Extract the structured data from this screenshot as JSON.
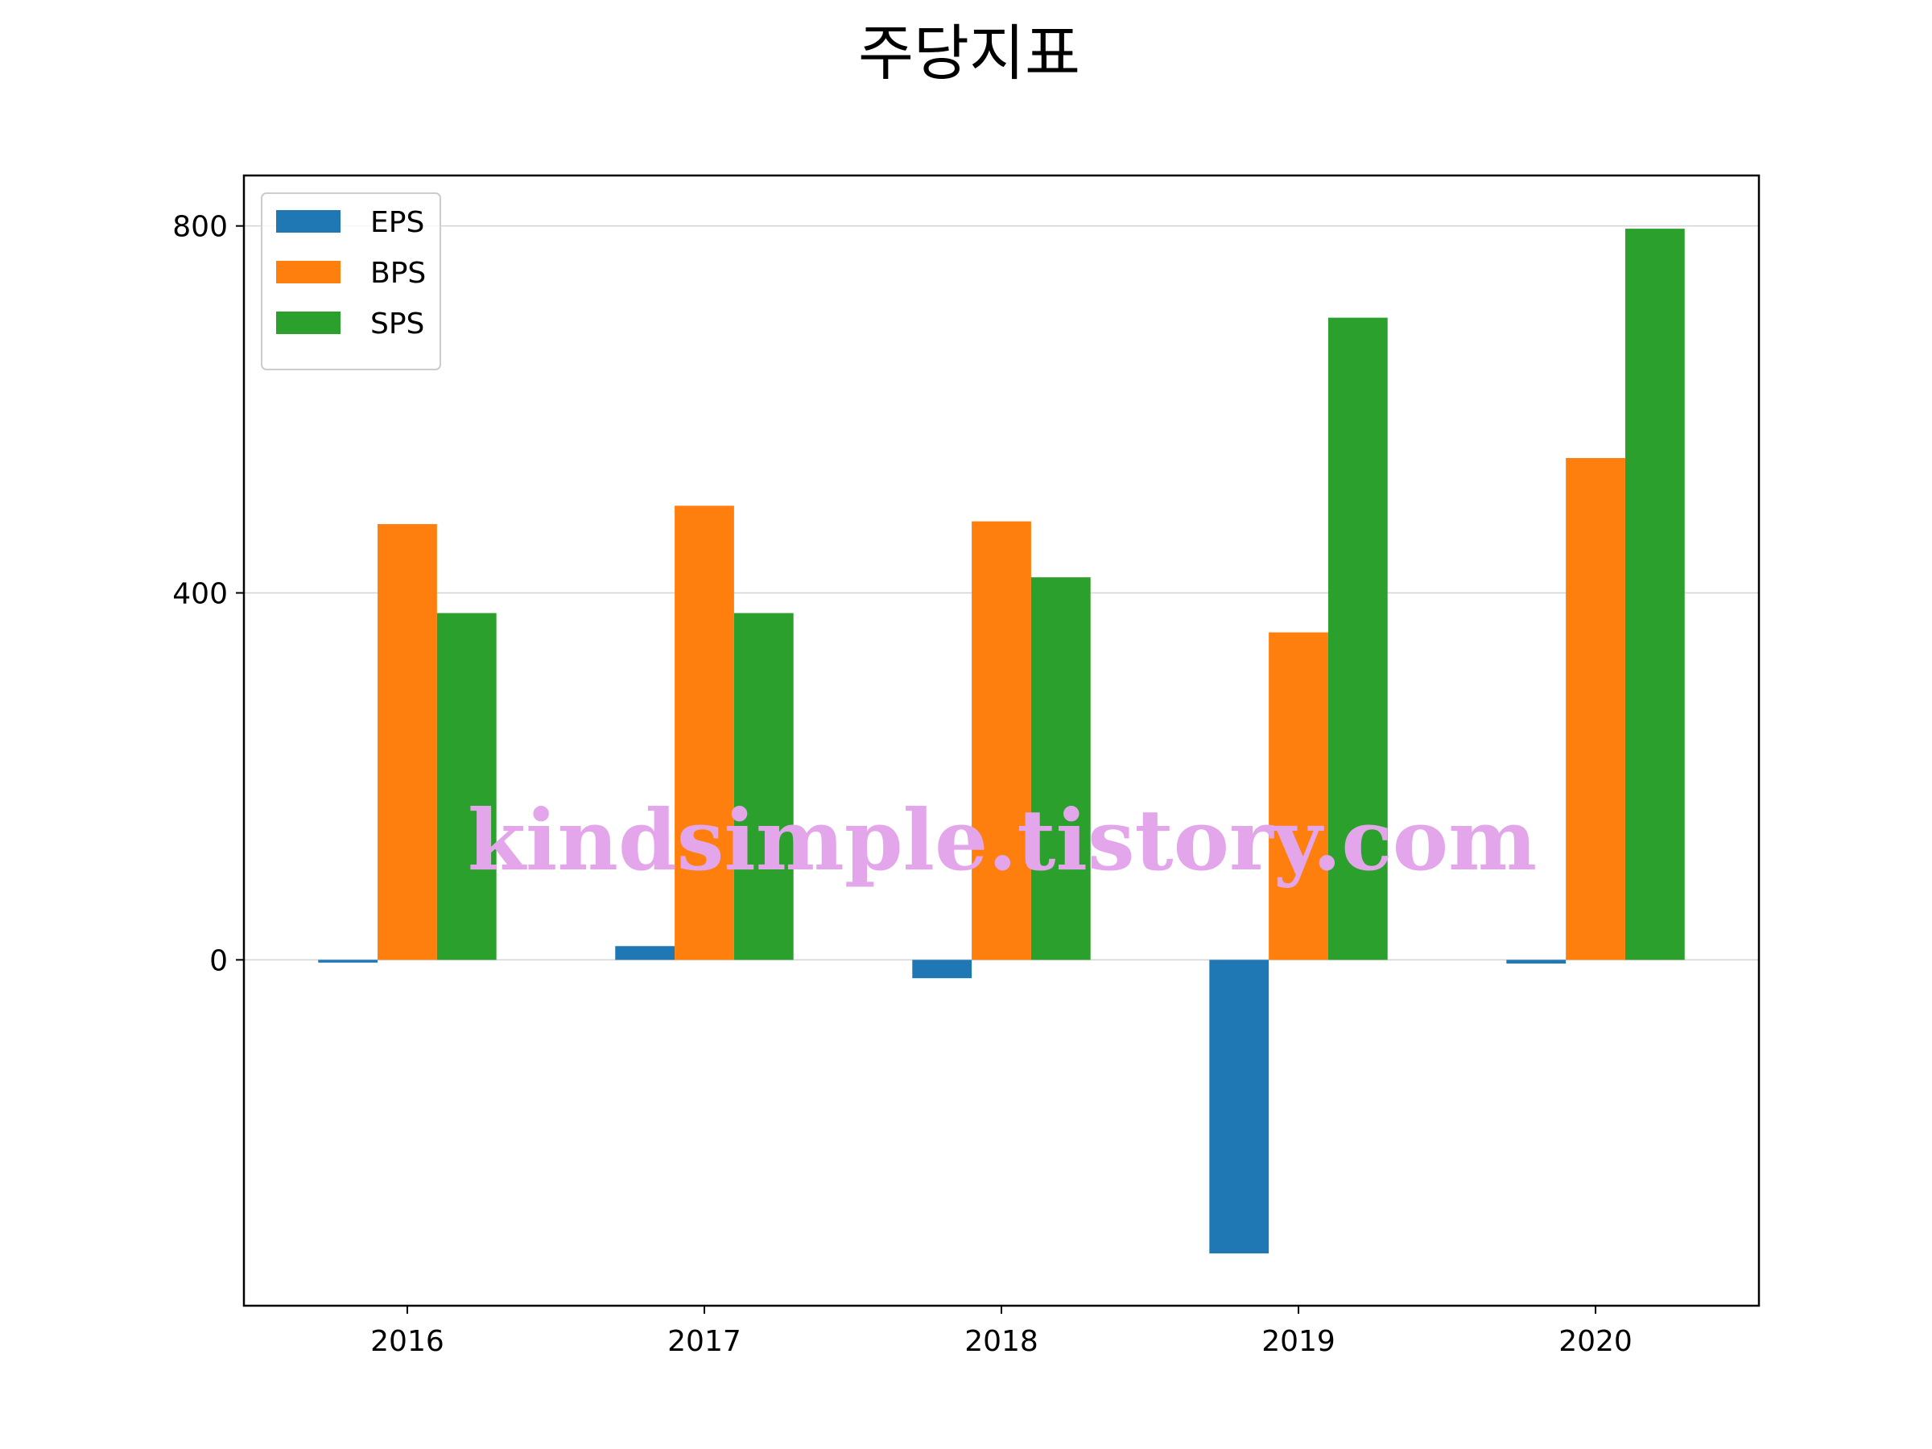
{
  "chart_data": {
    "type": "bar",
    "title": "주당지표",
    "xlabel": "",
    "ylabel": "",
    "categories": [
      "2016",
      "2017",
      "2018",
      "2019",
      "2020"
    ],
    "series": [
      {
        "name": "EPS",
        "color": "#1f77b4",
        "values": [
          -3,
          15,
          -20,
          -320,
          -4
        ]
      },
      {
        "name": "BPS",
        "color": "#ff7f0e",
        "values": [
          475,
          495,
          478,
          357,
          547
        ]
      },
      {
        "name": "SPS",
        "color": "#2ca02c",
        "values": [
          378,
          378,
          417,
          700,
          797
        ]
      }
    ],
    "ylim": [
      -377,
      855
    ],
    "yticks": [
      0,
      400,
      800
    ],
    "grid": "horizontal",
    "legend_position": "top-left"
  },
  "watermark": "kindsimple.tistory.com"
}
